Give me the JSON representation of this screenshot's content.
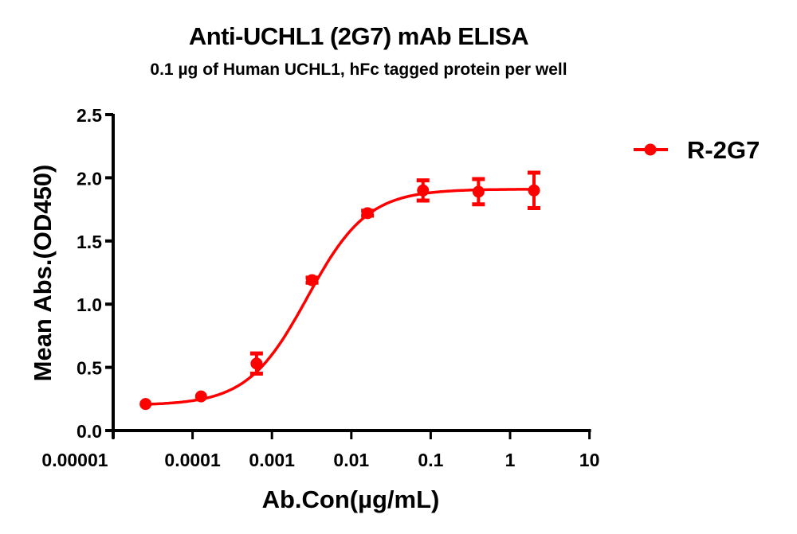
{
  "chart_data": {
    "type": "scatter",
    "title": "Anti-UCHL1 (2G7) mAb ELISA",
    "subtitle": "0.1 µg of Human UCHL1, hFc tagged protein per well",
    "xlabel": "Ab.Con(µg/mL)",
    "ylabel": "Mean Abs.(OD450)",
    "xscale": "log",
    "xlim": [
      1e-05,
      10
    ],
    "ylim": [
      0,
      2.5
    ],
    "x_ticks": [
      "0.00001",
      "0.0001",
      "0.001",
      "0.01",
      "0.1",
      "1",
      "10"
    ],
    "y_ticks": [
      "0.0",
      "0.5",
      "1.0",
      "1.5",
      "2.0",
      "2.5"
    ],
    "grid": false,
    "legend_position": "right-top",
    "fit": "sigmoidal 4PL curve",
    "series": [
      {
        "name": "R-2G7",
        "color": "#ff0000",
        "x": [
          2.56e-05,
          0.000128,
          0.00064,
          0.0032,
          0.016,
          0.08,
          0.4,
          2.0
        ],
        "values": [
          0.21,
          0.27,
          0.53,
          1.19,
          1.72,
          1.9,
          1.89,
          1.9
        ],
        "error": [
          0.01,
          0.01,
          0.08,
          0.02,
          0.02,
          0.08,
          0.1,
          0.14
        ]
      }
    ]
  }
}
